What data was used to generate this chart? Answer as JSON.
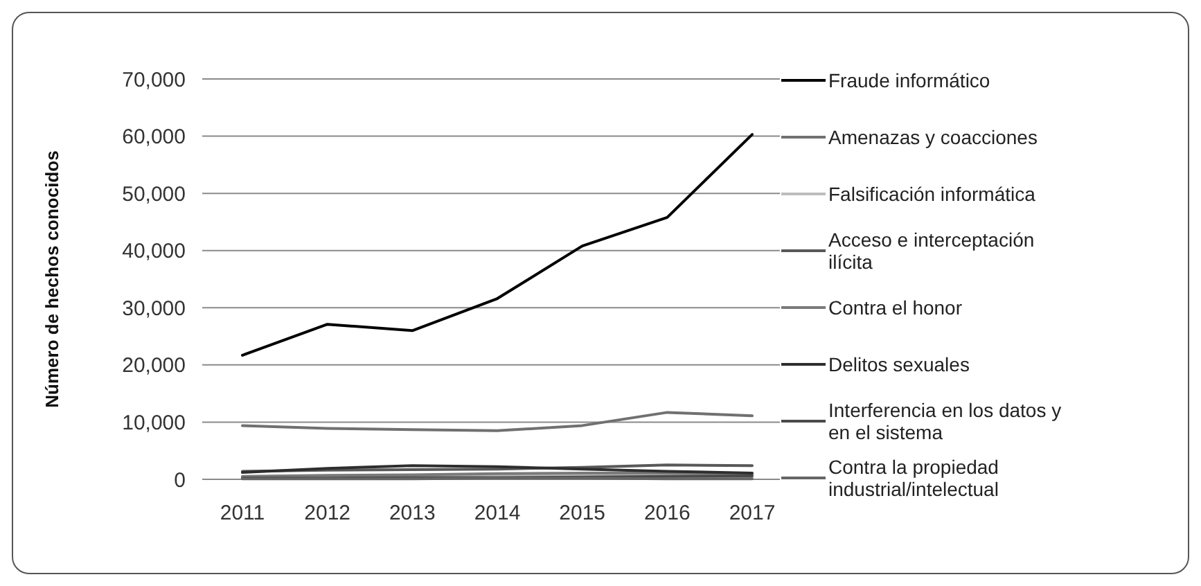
{
  "chart_data": {
    "type": "line",
    "ylabel": "Número de hechos conocidos",
    "categories": [
      "2011",
      "2012",
      "2013",
      "2014",
      "2015",
      "2016",
      "2017"
    ],
    "ylim": [
      0,
      70000
    ],
    "yticks": [
      {
        "value": 0,
        "label": "0"
      },
      {
        "value": 10000,
        "label": "10,000"
      },
      {
        "value": 20000,
        "label": "20,000"
      },
      {
        "value": 30000,
        "label": "30,000"
      },
      {
        "value": 40000,
        "label": "40,000"
      },
      {
        "value": 50000,
        "label": "50,000"
      },
      {
        "value": 60000,
        "label": "60,000"
      },
      {
        "value": 70000,
        "label": "70,000"
      }
    ],
    "grid": "y",
    "legend": "right",
    "marker": "none",
    "line_style": "solid",
    "series": [
      {
        "name": "Fraude informático",
        "color": "#000000",
        "values": [
          21700,
          27100,
          26000,
          31600,
          40800,
          45800,
          60300
        ]
      },
      {
        "name": "Amenazas y coacciones",
        "color": "#707070",
        "values": [
          9400,
          8900,
          8700,
          8500,
          9400,
          11700,
          11100
        ]
      },
      {
        "name": "Falsificación informática",
        "color": "#bdbdbd",
        "values": [
          300,
          400,
          500,
          600,
          700,
          800,
          500
        ]
      },
      {
        "name": "Acceso e interceptación ilícita",
        "color": "#585858",
        "values": [
          1400,
          1600,
          1700,
          1800,
          2100,
          2500,
          2400
        ]
      },
      {
        "name": "Contra el honor",
        "color": "#7a7a7a",
        "values": [
          500,
          700,
          800,
          1000,
          1100,
          1100,
          900
        ]
      },
      {
        "name": "Delitos sexuales",
        "color": "#2e2e2e",
        "values": [
          1200,
          1900,
          2400,
          2200,
          1800,
          1400,
          1100
        ]
      },
      {
        "name": "Interferencia en los datos y en el sistema",
        "color": "#4a4a4a",
        "values": [
          200,
          200,
          300,
          300,
          400,
          500,
          600
        ]
      },
      {
        "name": "Contra la propiedad industrial/intelectual",
        "color": "#666666",
        "values": [
          100,
          100,
          100,
          200,
          200,
          100,
          100
        ]
      }
    ]
  }
}
